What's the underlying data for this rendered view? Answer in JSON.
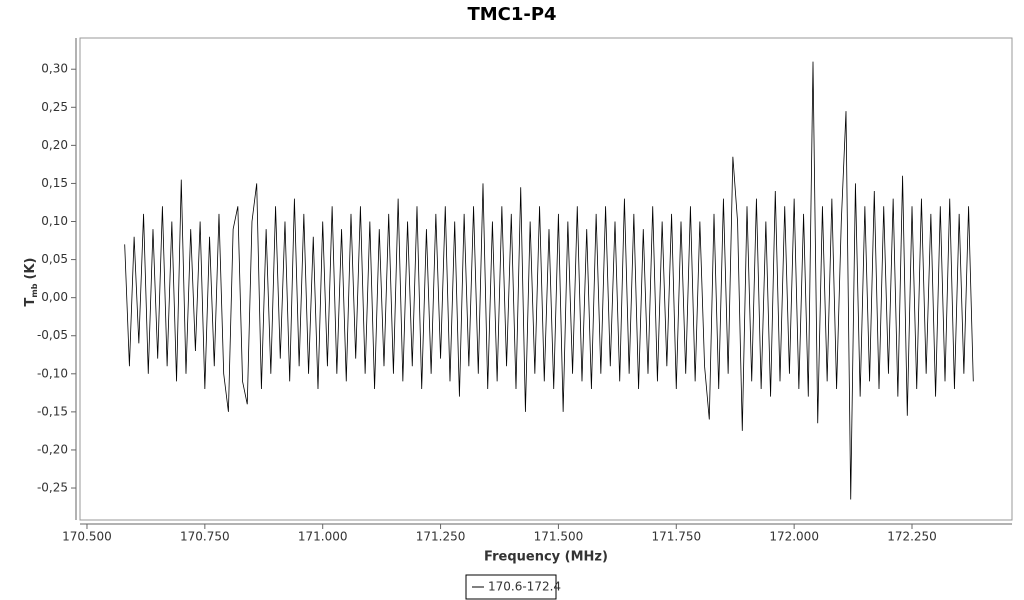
{
  "chart_data": {
    "type": "line",
    "title": "TMC1-P4",
    "x_label": "Frequency (MHz)",
    "y_label": {
      "main": "T",
      "sub": "mb",
      "unit": "(K)"
    },
    "xlim": [
      170.4852,
      172.4621
    ],
    "ylim": [
      -0.292,
      0.341
    ],
    "xticks": [
      {
        "value": 170.5,
        "label": "170.500"
      },
      {
        "value": 170.75,
        "label": "170.750"
      },
      {
        "value": 171.0,
        "label": "171.000"
      },
      {
        "value": 171.25,
        "label": "171.250"
      },
      {
        "value": 171.5,
        "label": "171.500"
      },
      {
        "value": 171.75,
        "label": "171.750"
      },
      {
        "value": 172.0,
        "label": "172.000"
      },
      {
        "value": 172.25,
        "label": "172.250"
      }
    ],
    "yticks": [
      {
        "value": -0.25,
        "label": "-0,25"
      },
      {
        "value": -0.2,
        "label": "-0,20"
      },
      {
        "value": -0.15,
        "label": "-0,15"
      },
      {
        "value": -0.1,
        "label": "-0,10"
      },
      {
        "value": -0.05,
        "label": "-0,05"
      },
      {
        "value": 0,
        "label": "0,00"
      },
      {
        "value": 0.05,
        "label": "0,05"
      },
      {
        "value": 0.1,
        "label": "0,10"
      },
      {
        "value": 0.15,
        "label": "0,15"
      },
      {
        "value": 0.2,
        "label": "0,20"
      },
      {
        "value": 0.25,
        "label": "0,25"
      },
      {
        "value": 0.3,
        "label": "0,30"
      }
    ],
    "x": [
      170.58,
      170.59,
      170.6,
      170.61,
      170.62,
      170.63,
      170.64,
      170.65,
      170.66,
      170.67,
      170.68,
      170.69,
      170.7,
      170.71,
      170.72,
      170.73,
      170.74,
      170.75,
      170.76,
      170.77,
      170.78,
      170.79,
      170.8,
      170.81,
      170.82,
      170.83,
      170.84,
      170.85,
      170.86,
      170.87,
      170.88,
      170.89,
      170.9,
      170.91,
      170.92,
      170.93,
      170.94,
      170.95,
      170.96,
      170.97,
      170.98,
      170.99,
      171.0,
      171.01,
      171.02,
      171.03,
      171.04,
      171.05,
      171.06,
      171.07,
      171.08,
      171.09,
      171.1,
      171.11,
      171.12,
      171.13,
      171.14,
      171.15,
      171.16,
      171.17,
      171.18,
      171.19,
      171.2,
      171.21,
      171.22,
      171.23,
      171.24,
      171.25,
      171.26,
      171.27,
      171.28,
      171.29,
      171.3,
      171.31,
      171.32,
      171.33,
      171.34,
      171.35,
      171.36,
      171.37,
      171.38,
      171.39,
      171.4,
      171.41,
      171.42,
      171.43,
      171.44,
      171.45,
      171.46,
      171.47,
      171.48,
      171.49,
      171.5,
      171.51,
      171.52,
      171.53,
      171.54,
      171.55,
      171.56,
      171.57,
      171.58,
      171.59,
      171.6,
      171.61,
      171.62,
      171.63,
      171.64,
      171.65,
      171.66,
      171.67,
      171.68,
      171.69,
      171.7,
      171.71,
      171.72,
      171.73,
      171.74,
      171.75,
      171.76,
      171.77,
      171.78,
      171.79,
      171.8,
      171.81,
      171.82,
      171.83,
      171.84,
      171.85,
      171.86,
      171.87,
      171.88,
      171.89,
      171.9,
      171.91,
      171.92,
      171.93,
      171.94,
      171.95,
      171.96,
      171.97,
      171.98,
      171.99,
      172.0,
      172.01,
      172.02,
      172.03,
      172.04,
      172.05,
      172.06,
      172.07,
      172.08,
      172.09,
      172.1,
      172.11,
      172.12,
      172.13,
      172.14,
      172.15,
      172.16,
      172.17,
      172.18,
      172.19,
      172.2,
      172.21,
      172.22,
      172.23,
      172.24,
      172.25,
      172.26,
      172.27,
      172.28,
      172.29,
      172.3,
      172.31,
      172.32,
      172.33,
      172.34,
      172.35,
      172.36,
      172.37,
      172.38
    ],
    "series": [
      {
        "name": "170.6-172.4",
        "color": "#000000",
        "values": [
          0.07,
          -0.09,
          0.08,
          -0.06,
          0.11,
          -0.1,
          0.09,
          -0.08,
          0.12,
          -0.09,
          0.1,
          -0.11,
          0.155,
          -0.1,
          0.09,
          -0.07,
          0.1,
          -0.12,
          0.08,
          -0.09,
          0.11,
          -0.1,
          -0.15,
          0.09,
          0.12,
          -0.11,
          -0.14,
          0.1,
          0.15,
          -0.12,
          0.09,
          -0.1,
          0.12,
          -0.08,
          0.1,
          -0.11,
          0.13,
          -0.09,
          0.11,
          -0.1,
          0.08,
          -0.12,
          0.1,
          -0.09,
          0.12,
          -0.1,
          0.09,
          -0.11,
          0.11,
          -0.08,
          0.12,
          -0.1,
          0.1,
          -0.12,
          0.09,
          -0.09,
          0.11,
          -0.1,
          0.13,
          -0.11,
          0.1,
          -0.09,
          0.12,
          -0.12,
          0.09,
          -0.1,
          0.11,
          -0.08,
          0.12,
          -0.11,
          0.1,
          -0.13,
          0.11,
          -0.09,
          0.12,
          -0.1,
          0.15,
          -0.12,
          0.1,
          -0.11,
          0.12,
          -0.09,
          0.11,
          -0.12,
          0.145,
          -0.15,
          0.1,
          -0.1,
          0.12,
          -0.11,
          0.09,
          -0.12,
          0.11,
          -0.15,
          0.1,
          -0.1,
          0.12,
          -0.11,
          0.09,
          -0.12,
          0.11,
          -0.1,
          0.12,
          -0.09,
          0.1,
          -0.11,
          0.13,
          -0.1,
          0.11,
          -0.12,
          0.09,
          -0.1,
          0.12,
          -0.11,
          0.1,
          -0.09,
          0.11,
          -0.12,
          0.1,
          -0.1,
          0.12,
          -0.11,
          0.1,
          -0.09,
          -0.16,
          0.11,
          -0.12,
          0.13,
          -0.1,
          0.185,
          0.1,
          -0.175,
          0.12,
          -0.11,
          0.13,
          -0.12,
          0.1,
          -0.13,
          0.14,
          -0.11,
          0.12,
          -0.1,
          0.13,
          -0.12,
          0.11,
          -0.13,
          0.31,
          -0.165,
          0.12,
          -0.11,
          0.13,
          -0.12,
          0.1,
          0.245,
          -0.265,
          0.15,
          -0.13,
          0.12,
          -0.11,
          0.14,
          -0.12,
          0.12,
          -0.1,
          0.13,
          -0.13,
          0.16,
          -0.155,
          0.12,
          -0.12,
          0.13,
          -0.1,
          0.11,
          -0.13,
          0.12,
          -0.11,
          0.13,
          -0.12,
          0.11,
          -0.1,
          0.12,
          -0.11
        ]
      }
    ]
  }
}
